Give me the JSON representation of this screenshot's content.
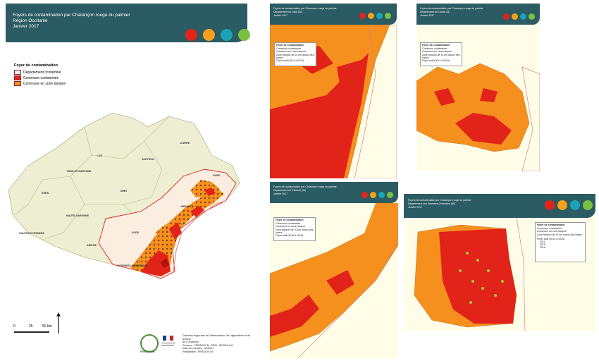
{
  "main": {
    "title_line1": "Foyers de contamination par Charançon rouge du palmier",
    "title_line2": "Région Occitanie",
    "title_line3": "Janvier 2017",
    "legend": {
      "title": "Foyer de contamination",
      "items": [
        {
          "label": "Département contaminé",
          "color": "#fbeee0"
        },
        {
          "label": "Commune contaminée",
          "color": "#e2231a"
        },
        {
          "label": "Commune en zone tampon",
          "color": "#f5901e"
        }
      ]
    },
    "departments": [
      "LOT",
      "LOZERE",
      "AVEYRON",
      "TARN-ET-GARONNE",
      "GERS",
      "TARN",
      "GARD",
      "HAUTE-GARONNE",
      "HERAULT",
      "HAUTES-PYRENEES",
      "AUDE",
      "ARIEGE",
      "PYRENEES-ORIENTALES"
    ],
    "scale": {
      "labels": [
        "0",
        "25",
        "50 km"
      ]
    },
    "credits": [
      "Direction régionale de l'alimentation, de l'agriculture et de la forêt",
      "de l'Occitanie",
      "Sources : FREDON 34, SRAL SEOR/ALIA",
      "Date de création : 01/2017",
      "Réalisation : FREDON LR"
    ]
  },
  "panels": [
    {
      "id": "gard",
      "line1": "Foyers de contamination par Charançon rouge du palmier",
      "line2": "Département du Gard (30)",
      "line3": "Janvier 2017"
    },
    {
      "id": "aude",
      "line1": "Foyers de contamination par Charançon rouge du palmier",
      "line2": "Département de l'Aude (11)",
      "line3": "Janvier 2017"
    },
    {
      "id": "herault",
      "line1": "Foyers de contamination par Charançon rouge du palmier",
      "line2": "Département de l'Hérault (34)",
      "line3": "Janvier 2017"
    },
    {
      "id": "po",
      "line1": "Foyers de contamination par Charançon rouge du palmier",
      "line2": "Département des Pyrénées-Orientales (66)",
      "line3": "Janvier 2017"
    }
  ],
  "mini_legend": {
    "title": "Foyer de contamination",
    "items": [
      "Commune contaminée",
      "Commune en zone tampon",
      "Zone tampon de 10 km autour des foyers"
    ],
    "sub": "Foyer actif (2014 à 2016)",
    "years": [
      "2014",
      "2015",
      "2016"
    ]
  },
  "brand_colors": [
    "#e2231a",
    "#f5a11e",
    "#1aa3b5",
    "#7ac143"
  ],
  "logo_text": "FREDON LR"
}
